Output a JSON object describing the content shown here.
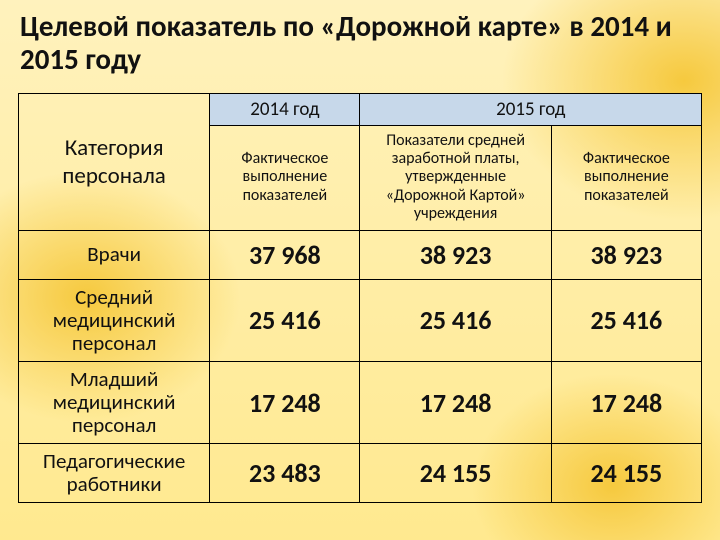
{
  "title": "Целевой показатель по «Дорожной карте» в 2014 и 2015 году",
  "colors": {
    "header_band": "#c7d8ea",
    "border": "#000000",
    "text": "#111111",
    "bg_top": "#fff2bd",
    "bg_bottom": "#ffe98f",
    "bg_accent": "#f6c93e"
  },
  "typography": {
    "title_fontsize_pt": 22,
    "year_fontsize_pt": 14,
    "cat_fontsize_pt": 17,
    "sub_fontsize_pt": 12,
    "rowlabel_fontsize_pt": 16,
    "value_fontsize_pt": 20,
    "value_weight": 700
  },
  "table": {
    "col_widths_pct": [
      28,
      22,
      28,
      22
    ],
    "header": {
      "category": "Категория персонала",
      "year_2014": "2014 год",
      "year_2015": "2015 год",
      "sub_2014": "Фактическое выполнение показателей",
      "sub_2015_a": "Показатели средней заработной платы, утвержденные «Дорожной Картой» учреждения",
      "sub_2015_b": "Фактическое выполнение показателей"
    },
    "rows": [
      {
        "label": "Врачи",
        "v2014": "37 968",
        "v2015a": "38 923",
        "v2015b": "38 923"
      },
      {
        "label": "Средний медицинский персонал",
        "v2014": "25 416",
        "v2015a": "25 416",
        "v2015b": "25 416"
      },
      {
        "label": "Младший медицинский персонал",
        "v2014": "17 248",
        "v2015a": "17 248",
        "v2015b": "17 248"
      },
      {
        "label": "Педагогические работники",
        "v2014": "23 483",
        "v2015a": "24 155",
        "v2015b": "24 155"
      }
    ]
  }
}
